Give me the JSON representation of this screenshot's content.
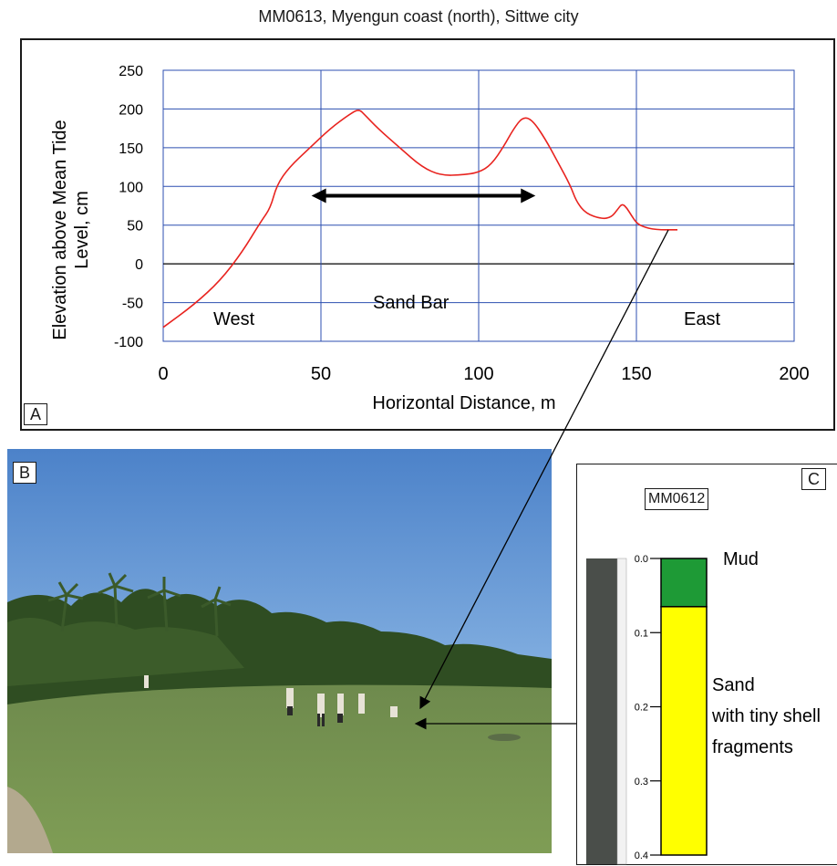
{
  "figure_title": "MM0613, Myengun coast (north), Sittwe city",
  "panel_a": {
    "label": "A",
    "chart_data": {
      "type": "line",
      "title": "MM0613, Myengun coast (north), Sittwe city",
      "xlabel": "Horizontal Distance, m",
      "ylabel_line1": "Elevation above Mean Tide",
      "ylabel_line2": "Level, cm",
      "xlim": [
        0,
        200
      ],
      "ylim": [
        -100,
        250
      ],
      "x_ticks": [
        "0",
        "50",
        "100",
        "150",
        "200"
      ],
      "y_ticks": [
        "250",
        "200",
        "150",
        "100",
        "50",
        "0",
        "-50",
        "-100"
      ],
      "grid": true,
      "series": [
        {
          "color": "#e8231f",
          "x": [
            0,
            10,
            18,
            25,
            31,
            34,
            36,
            40,
            46,
            53,
            59,
            62,
            64,
            68,
            75,
            82,
            88,
            95,
            100,
            104,
            108,
            111,
            114,
            117,
            121,
            125,
            129,
            131,
            134,
            139,
            142,
            144,
            145.5,
            147,
            148.5,
            150,
            152,
            156,
            163
          ],
          "y": [
            -82,
            -52,
            -22,
            15,
            55,
            72,
            102,
            125,
            148,
            175,
            193,
            200,
            192,
            175,
            150,
            125,
            114,
            115,
            118,
            128,
            152,
            174,
            190,
            186,
            162,
            132,
            102,
            80,
            65,
            58,
            60,
            70,
            78,
            72,
            62,
            53,
            48,
            44,
            44
          ]
        }
      ],
      "annotations": {
        "west": "West",
        "sand_bar": "Sand Bar",
        "east": "East"
      },
      "arrow_x_range": [
        47,
        118
      ],
      "arrow_y": 88
    }
  },
  "panel_b": {
    "label": "B"
  },
  "panel_c": {
    "label": "C",
    "core_id": "MM0612",
    "depth_ticks": [
      "0.0",
      "0.1",
      "0.2",
      "0.3",
      "0.4"
    ],
    "units": [
      {
        "name": "Mud",
        "top": 0.0,
        "bottom": 0.065,
        "color": "#1e9a36"
      },
      {
        "name": "Sand",
        "top": 0.065,
        "bottom": 0.4,
        "color": "#ffff00"
      }
    ],
    "mud_label": "Mud",
    "sand_label_1": "Sand",
    "sand_label_2": "with tiny shell",
    "sand_label_3": "fragments"
  }
}
